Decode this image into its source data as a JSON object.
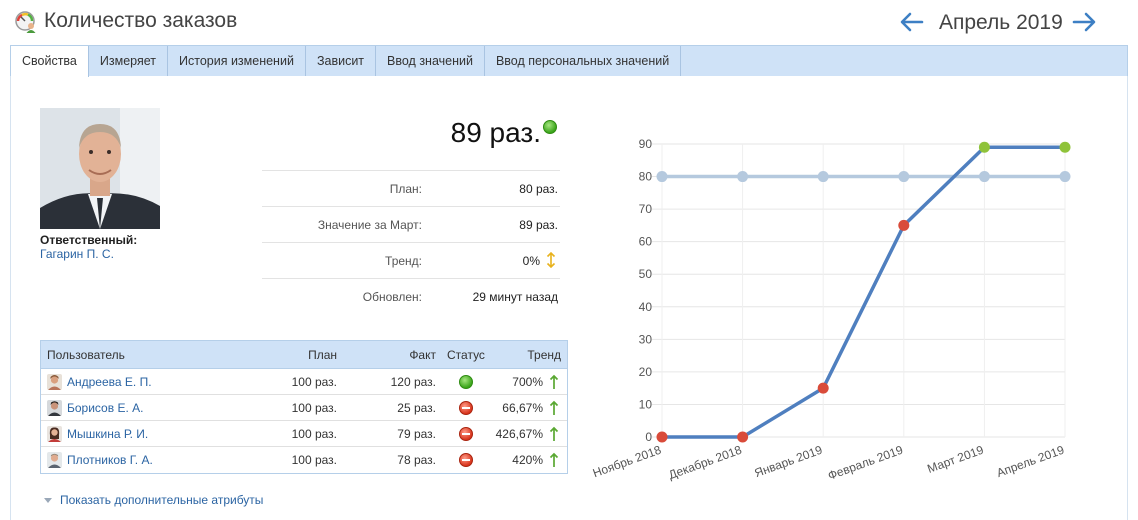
{
  "header": {
    "title": "Количество заказов",
    "period": "Апрель 2019"
  },
  "tabs": [
    {
      "label": "Свойства",
      "active": true
    },
    {
      "label": "Измеряет"
    },
    {
      "label": "История изменений"
    },
    {
      "label": "Зависит"
    },
    {
      "label": "Ввод значений"
    },
    {
      "label": "Ввод персональных значений"
    }
  ],
  "responsible": {
    "label": "Ответственный:",
    "name": "Гагарин П. С."
  },
  "value": {
    "main": "89 раз.",
    "status_color": "#3aa41a"
  },
  "info": [
    {
      "label": "План:",
      "value": "80 раз."
    },
    {
      "label": "Значение за Март:",
      "value": "89 раз."
    },
    {
      "label": "Тренд:",
      "value": "0%",
      "trend_icon": "up-down-arrow-icon"
    },
    {
      "label": "Обновлен:",
      "value": "29 минут назад"
    }
  ],
  "users_table": {
    "headers": {
      "user": "Пользователь",
      "plan": "План",
      "fact": "Факт",
      "status": "Статус",
      "trend": "Тренд"
    },
    "rows": [
      {
        "name": "Андреева Е. П.",
        "plan": "100 раз.",
        "fact": "120 раз.",
        "status": "green",
        "trend": "700%"
      },
      {
        "name": "Борисов Е. А.",
        "plan": "100 раз.",
        "fact": "25 раз.",
        "status": "red",
        "trend": "66,67%"
      },
      {
        "name": "Мышкина Р. И.",
        "plan": "100 раз.",
        "fact": "79 раз.",
        "status": "red",
        "trend": "426,67%"
      },
      {
        "name": "Плотников Г. А.",
        "plan": "100 раз.",
        "fact": "78 раз.",
        "status": "red",
        "trend": "420%"
      }
    ]
  },
  "more_attributes": "Показать дополнительные атрибуты",
  "chart_data": {
    "type": "line",
    "categories": [
      "Ноябрь 2018",
      "Декабрь 2018",
      "Январь 2019",
      "Февраль 2019",
      "Март 2019",
      "Апрель 2019"
    ],
    "series": [
      {
        "values": [
          80,
          80,
          80,
          80,
          80,
          80
        ],
        "color": "#b5c9de"
      },
      {
        "values": [
          0,
          0,
          15,
          65,
          89,
          89
        ],
        "color": "#4f7fbf",
        "point_colors": [
          "#d94b3a",
          "#d94b3a",
          "#d94b3a",
          "#d94b3a",
          "#8fc33a",
          "#8fc33a"
        ]
      }
    ],
    "ylim": [
      0,
      90
    ],
    "yticks": [
      0,
      10,
      20,
      30,
      40,
      50,
      60,
      70,
      80,
      90
    ],
    "grid": true,
    "title": "",
    "xlabel": "",
    "ylabel": ""
  }
}
